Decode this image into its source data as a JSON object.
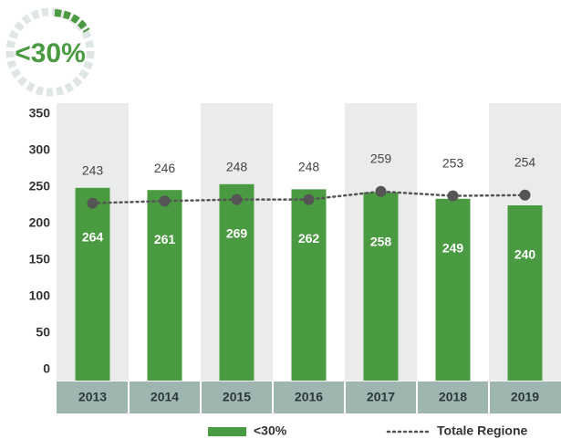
{
  "chart_data": {
    "type": "bar",
    "badge": "<30%",
    "categories": [
      "2013",
      "2014",
      "2015",
      "2016",
      "2017",
      "2018",
      "2019"
    ],
    "series": [
      {
        "name": "<30%",
        "type": "bar",
        "color": "#4a9a41",
        "values": [
          264,
          261,
          269,
          262,
          258,
          249,
          240
        ]
      },
      {
        "name": "Totale Regione",
        "type": "line",
        "color": "#555555",
        "values": [
          243,
          246,
          248,
          248,
          259,
          253,
          254
        ]
      }
    ],
    "ylim": [
      0,
      380
    ],
    "yticks": [
      0,
      50,
      100,
      150,
      200,
      250,
      300,
      350
    ],
    "grid": false
  }
}
